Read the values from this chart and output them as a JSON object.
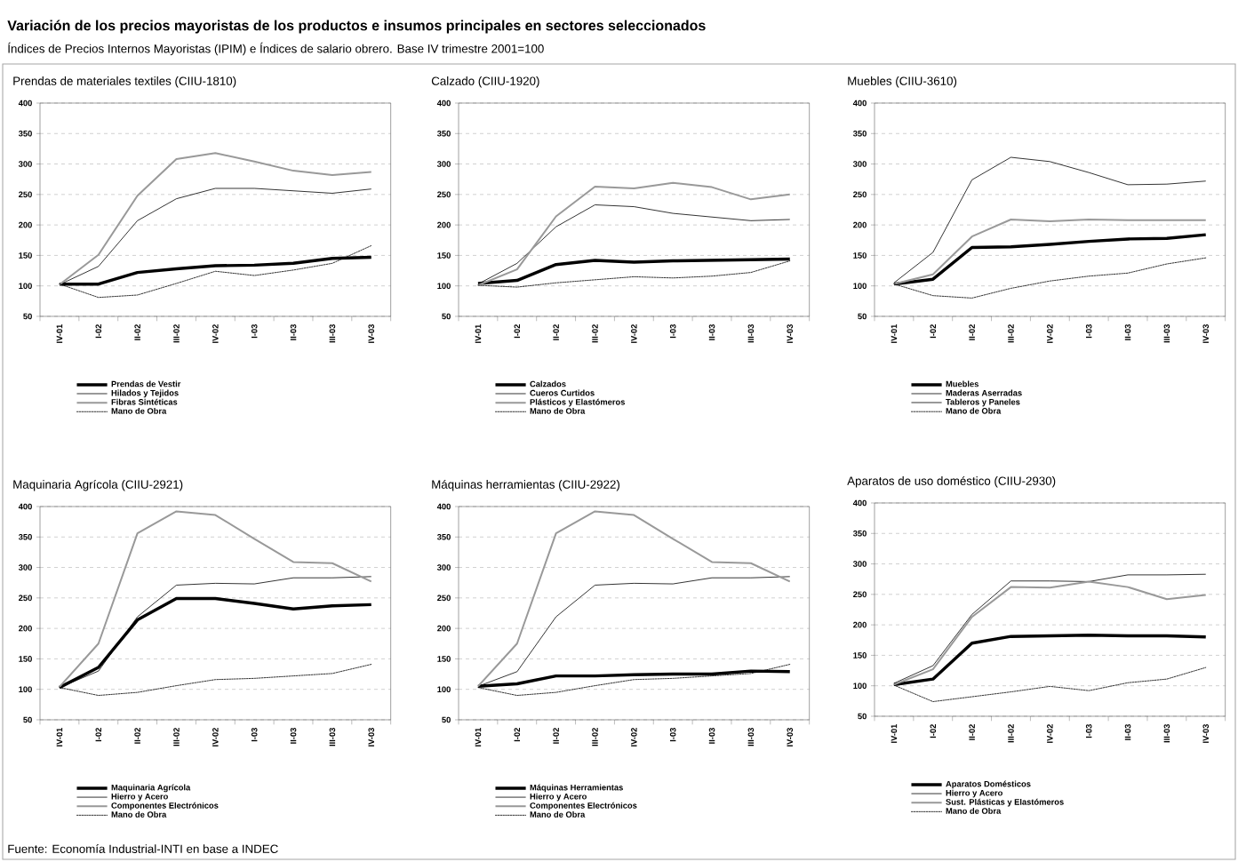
{
  "chart_data": [
    {
      "type": "line",
      "title": "Prendas de materiales textiles (CIIU-1810)",
      "annotations": [
        "Variación de los precios mayoristas de los productos e insumos principales en sectores seleccionados",
        "Índices de Precios Internos Mayoristas (IPIM) e Índices de salario obrero. Base IV trimestre 2001=100",
        "Fuente: Economía Industrial-INTI en base a INDEC"
      ],
      "categories": [
        "IV-01",
        "I-02",
        "II-02",
        "III-02",
        "IV-02",
        "I-03",
        "II-03",
        "III-03",
        "IV-03"
      ],
      "ylim": [
        50,
        400
      ],
      "yticks": [
        50,
        100,
        150,
        200,
        250,
        300,
        350,
        400
      ],
      "grid": "y",
      "legend": "bottom",
      "series": [
        {
          "name": "Prendas de Vestir",
          "color": "#000000",
          "line_style": "solid",
          "values": [
            103,
            103,
            122,
            128,
            133,
            134,
            137,
            145,
            147
          ]
        },
        {
          "name": "Hilados y Tejidos",
          "color": "#000000",
          "line_style": "solid",
          "values": [
            102,
            132,
            207,
            243,
            260,
            260,
            256,
            252,
            259
          ]
        },
        {
          "name": "Fibras Sintéticas",
          "color": "#999999",
          "line_style": "solid",
          "values": [
            102,
            151,
            248,
            308,
            318,
            304,
            289,
            282,
            287
          ]
        },
        {
          "name": "Mano de Obra",
          "color": "#000000",
          "line_style": "dotted",
          "values": [
            103,
            81,
            85,
            104,
            124,
            117,
            126,
            137,
            166
          ]
        }
      ]
    },
    {
      "type": "line",
      "title": "Calzado (CIIU-1920)",
      "categories": [
        "IV-01",
        "I-02",
        "II-02",
        "III-02",
        "IV-02",
        "I-03",
        "II-03",
        "III-03",
        "IV-03"
      ],
      "ylim": [
        50,
        400
      ],
      "yticks": [
        50,
        100,
        150,
        200,
        250,
        300,
        350,
        400
      ],
      "grid": "y",
      "legend": "bottom",
      "series": [
        {
          "name": "Calzados",
          "color": "#000000",
          "line_style": "solid",
          "values": [
            104,
            109,
            135,
            142,
            139,
            141,
            142,
            143,
            144
          ]
        },
        {
          "name": "Cueros Curtidos",
          "color": "#000000",
          "line_style": "solid",
          "values": [
            103,
            137,
            197,
            233,
            230,
            219,
            213,
            207,
            209
          ]
        },
        {
          "name": "Plásticos y Elastómeros",
          "color": "#999999",
          "line_style": "solid",
          "values": [
            101,
            127,
            214,
            263,
            260,
            269,
            262,
            242,
            250
          ]
        },
        {
          "name": "Mano de Obra",
          "color": "#000000",
          "line_style": "dotted",
          "values": [
            101,
            98,
            105,
            110,
            115,
            113,
            116,
            122,
            141
          ]
        }
      ]
    },
    {
      "type": "line",
      "title": "Muebles (CIIU-3610)",
      "categories": [
        "IV-01",
        "I-02",
        "II-02",
        "III-02",
        "IV-02",
        "I-03",
        "II-03",
        "III-03",
        "IV-03"
      ],
      "ylim": [
        50,
        400
      ],
      "yticks": [
        50,
        100,
        150,
        200,
        250,
        300,
        350,
        400
      ],
      "grid": "y",
      "legend": "bottom",
      "series": [
        {
          "name": "Muebles",
          "color": "#000000",
          "line_style": "solid",
          "values": [
            103,
            111,
            163,
            164,
            168,
            173,
            177,
            178,
            184
          ]
        },
        {
          "name": "Maderas Aserradas",
          "color": "#000000",
          "line_style": "solid",
          "values": [
            105,
            155,
            274,
            311,
            304,
            286,
            266,
            267,
            272
          ]
        },
        {
          "name": "Tableros y Paneles",
          "color": "#999999",
          "line_style": "solid",
          "values": [
            103,
            119,
            181,
            209,
            206,
            209,
            208,
            208,
            208
          ]
        },
        {
          "name": "Mano de Obra",
          "color": "#000000",
          "line_style": "dotted",
          "values": [
            103,
            84,
            80,
            96,
            108,
            116,
            121,
            136,
            146
          ]
        }
      ]
    },
    {
      "type": "line",
      "title": "Maquinaria Agrícola (CIIU-2921)",
      "categories": [
        "IV-01",
        "I-02",
        "II-02",
        "III-02",
        "IV-02",
        "I-03",
        "II-03",
        "III-03",
        "IV-03"
      ],
      "ylim": [
        50,
        400
      ],
      "yticks": [
        50,
        100,
        150,
        200,
        250,
        300,
        350,
        400
      ],
      "grid": "y",
      "legend": "bottom",
      "series": [
        {
          "name": "Maquinaria Agrícola",
          "color": "#000000",
          "line_style": "solid",
          "values": [
            103,
            136,
            214,
            249,
            249,
            241,
            232,
            237,
            239
          ]
        },
        {
          "name": "Hierro y Acero",
          "color": "#000000",
          "line_style": "solid",
          "values": [
            103,
            130,
            219,
            271,
            274,
            273,
            283,
            283,
            285
          ]
        },
        {
          "name": "Componentes Electrónicos",
          "color": "#999999",
          "line_style": "solid",
          "values": [
            104,
            175,
            356,
            392,
            386,
            347,
            309,
            307,
            277
          ]
        },
        {
          "name": "Mano de Obra",
          "color": "#000000",
          "line_style": "dotted",
          "values": [
            103,
            90,
            95,
            106,
            116,
            118,
            122,
            126,
            141
          ]
        }
      ]
    },
    {
      "type": "line",
      "title": "Máquinas herramientas (CIIU-2922)",
      "categories": [
        "IV-01",
        "I-02",
        "II-02",
        "III-02",
        "IV-02",
        "I-03",
        "II-03",
        "III-03",
        "IV-03"
      ],
      "ylim": [
        50,
        400
      ],
      "yticks": [
        50,
        100,
        150,
        200,
        250,
        300,
        350,
        400
      ],
      "grid": "y",
      "legend": "bottom",
      "series": [
        {
          "name": "Máquinas Herramientas",
          "color": "#000000",
          "line_style": "solid",
          "values": [
            105,
            109,
            122,
            122,
            124,
            125,
            125,
            130,
            129
          ]
        },
        {
          "name": "Hierro y Acero",
          "color": "#000000",
          "line_style": "solid",
          "values": [
            105,
            129,
            219,
            271,
            274,
            273,
            283,
            283,
            285
          ]
        },
        {
          "name": "Componentes Electrónicos",
          "color": "#999999",
          "line_style": "solid",
          "values": [
            105,
            175,
            356,
            392,
            386,
            347,
            309,
            307,
            277
          ]
        },
        {
          "name": "Mano de Obra",
          "color": "#000000",
          "line_style": "dotted",
          "values": [
            103,
            90,
            95,
            106,
            116,
            118,
            122,
            126,
            141
          ]
        }
      ]
    },
    {
      "type": "line",
      "title": "Aparatos de uso doméstico (CIIU-2930)",
      "categories": [
        "IV-01",
        "I-02",
        "II-02",
        "III-02",
        "IV-02",
        "I-03",
        "II-03",
        "III-03",
        "IV-03"
      ],
      "ylim": [
        50,
        400
      ],
      "yticks": [
        50,
        100,
        150,
        200,
        250,
        300,
        350,
        400
      ],
      "grid": "y",
      "legend": "bottom",
      "series": [
        {
          "name": "Aparatos Domésticos",
          "color": "#000000",
          "line_style": "solid",
          "values": [
            102,
            111,
            170,
            181,
            182,
            183,
            182,
            182,
            180
          ]
        },
        {
          "name": "Hierro y Acero",
          "color": "#000000",
          "line_style": "solid",
          "values": [
            104,
            133,
            217,
            272,
            272,
            271,
            282,
            282,
            283
          ]
        },
        {
          "name": "Sust. Plásticas y Elastómeros",
          "color": "#999999",
          "line_style": "solid",
          "values": [
            102,
            127,
            213,
            262,
            261,
            271,
            262,
            242,
            249
          ]
        },
        {
          "name": "Mano de Obra",
          "color": "#000000",
          "line_style": "dotted",
          "values": [
            101,
            74,
            82,
            90,
            99,
            92,
            105,
            111,
            130
          ]
        }
      ]
    }
  ]
}
